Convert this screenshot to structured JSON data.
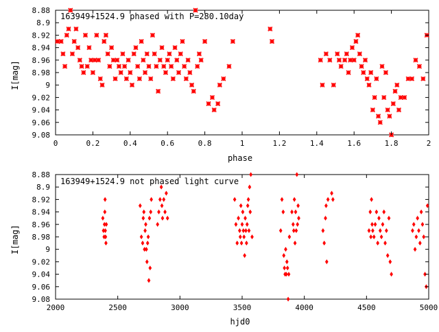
{
  "chart_data": [
    {
      "type": "scatter",
      "title": "163949+1524.9 phased with P=280.10day",
      "xlabel": "phase",
      "ylabel": "I[mag]",
      "xlim": [
        0,
        2
      ],
      "ylim": [
        8.88,
        9.08
      ],
      "y_inverted": true,
      "xticks": [
        0,
        0.2,
        0.4,
        0.6,
        0.8,
        1,
        1.2,
        1.4,
        1.6,
        1.8,
        2
      ],
      "xtick_labels": [
        "0",
        "0.2",
        "0.4",
        "0.6",
        "0.8",
        "1",
        "1.2",
        "1.4",
        "1.6",
        "1.8",
        "2"
      ],
      "yticks": [
        8.88,
        8.9,
        8.92,
        8.94,
        8.96,
        8.98,
        9,
        9.02,
        9.04,
        9.06,
        9.08
      ],
      "ytick_labels": [
        "8.88",
        "8.9",
        "8.92",
        "8.94",
        "8.96",
        "8.98",
        "9",
        "9.02",
        "9.04",
        "9.06",
        "9.08"
      ],
      "grid": false,
      "marker_color": "#ff0000",
      "points": [
        [
          0.01,
          8.93
        ],
        [
          0.03,
          8.93
        ],
        [
          0.04,
          8.95
        ],
        [
          0.05,
          8.97
        ],
        [
          0.06,
          8.92
        ],
        [
          0.07,
          8.91
        ],
        [
          0.08,
          8.88
        ],
        [
          0.09,
          8.95
        ],
        [
          0.1,
          8.93
        ],
        [
          0.11,
          8.91
        ],
        [
          0.12,
          8.94
        ],
        [
          0.13,
          8.96
        ],
        [
          0.14,
          8.97
        ],
        [
          0.15,
          8.98
        ],
        [
          0.16,
          8.92
        ],
        [
          0.17,
          8.97
        ],
        [
          0.18,
          8.94
        ],
        [
          0.19,
          8.96
        ],
        [
          0.2,
          8.98
        ],
        [
          0.21,
          8.96
        ],
        [
          0.22,
          8.92
        ],
        [
          0.23,
          8.96
        ],
        [
          0.24,
          8.99
        ],
        [
          0.25,
          9
        ],
        [
          0.26,
          8.93
        ],
        [
          0.27,
          8.92
        ],
        [
          0.28,
          8.95
        ],
        [
          0.29,
          8.97
        ],
        [
          0.3,
          8.94
        ],
        [
          0.31,
          8.96
        ],
        [
          0.32,
          8.99
        ],
        [
          0.33,
          8.96
        ],
        [
          0.34,
          8.97
        ],
        [
          0.35,
          8.98
        ],
        [
          0.36,
          8.95
        ],
        [
          0.37,
          8.97
        ],
        [
          0.38,
          8.99
        ],
        [
          0.39,
          8.96
        ],
        [
          0.4,
          8.98
        ],
        [
          0.41,
          9
        ],
        [
          0.42,
          8.95
        ],
        [
          0.43,
          8.94
        ],
        [
          0.44,
          8.97
        ],
        [
          0.45,
          8.99
        ],
        [
          0.46,
          8.93
        ],
        [
          0.47,
          8.96
        ],
        [
          0.48,
          8.98
        ],
        [
          0.49,
          8.95
        ],
        [
          0.5,
          8.97
        ],
        [
          0.51,
          8.99
        ],
        [
          0.52,
          8.92
        ],
        [
          0.53,
          8.95
        ],
        [
          0.54,
          8.97
        ],
        [
          0.55,
          9.01
        ],
        [
          0.56,
          8.96
        ],
        [
          0.57,
          8.94
        ],
        [
          0.58,
          8.97
        ],
        [
          0.59,
          8.98
        ],
        [
          0.6,
          8.96
        ],
        [
          0.61,
          8.95
        ],
        [
          0.62,
          8.97
        ],
        [
          0.63,
          8.99
        ],
        [
          0.64,
          8.94
        ],
        [
          0.65,
          8.96
        ],
        [
          0.66,
          8.98
        ],
        [
          0.67,
          8.95
        ],
        [
          0.68,
          8.93
        ],
        [
          0.69,
          8.97
        ],
        [
          0.7,
          8.99
        ],
        [
          0.71,
          8.96
        ],
        [
          0.72,
          8.98
        ],
        [
          0.73,
          9
        ],
        [
          0.74,
          9.01
        ],
        [
          0.75,
          8.88
        ],
        [
          0.76,
          8.97
        ],
        [
          0.77,
          8.95
        ],
        [
          0.78,
          8.96
        ],
        [
          0.8,
          8.93
        ],
        [
          0.82,
          9.03
        ],
        [
          0.84,
          9.02
        ],
        [
          0.85,
          9.04
        ],
        [
          0.87,
          9.03
        ],
        [
          0.88,
          9
        ],
        [
          0.9,
          8.99
        ],
        [
          0.93,
          8.97
        ],
        [
          0.95,
          8.93
        ],
        [
          1.15,
          8.91
        ],
        [
          1.16,
          8.93
        ],
        [
          1.42,
          8.96
        ],
        [
          1.43,
          9
        ],
        [
          1.45,
          8.95
        ],
        [
          1.47,
          8.96
        ],
        [
          1.49,
          9
        ],
        [
          1.51,
          8.95
        ],
        [
          1.52,
          8.96
        ],
        [
          1.53,
          8.97
        ],
        [
          1.55,
          8.96
        ],
        [
          1.56,
          8.95
        ],
        [
          1.57,
          8.98
        ],
        [
          1.58,
          8.96
        ],
        [
          1.59,
          8.94
        ],
        [
          1.6,
          8.96
        ],
        [
          1.61,
          8.93
        ],
        [
          1.62,
          8.92
        ],
        [
          1.63,
          8.95
        ],
        [
          1.64,
          8.97
        ],
        [
          1.65,
          8.98
        ],
        [
          1.66,
          8.96
        ],
        [
          1.67,
          8.99
        ],
        [
          1.68,
          9
        ],
        [
          1.69,
          8.98
        ],
        [
          1.7,
          9.04
        ],
        [
          1.71,
          9.02
        ],
        [
          1.72,
          8.99
        ],
        [
          1.73,
          9.05
        ],
        [
          1.74,
          9.06
        ],
        [
          1.75,
          8.97
        ],
        [
          1.76,
          9.02
        ],
        [
          1.77,
          8.98
        ],
        [
          1.78,
          9.04
        ],
        [
          1.79,
          9.05
        ],
        [
          1.8,
          9.08
        ],
        [
          1.81,
          9.03
        ],
        [
          1.82,
          9.01
        ],
        [
          1.83,
          9
        ],
        [
          1.84,
          9.04
        ],
        [
          1.85,
          9.02
        ],
        [
          1.87,
          9.02
        ],
        [
          1.89,
          8.99
        ],
        [
          1.91,
          8.99
        ],
        [
          1.93,
          8.96
        ],
        [
          1.95,
          8.97
        ],
        [
          1.97,
          8.99
        ],
        [
          1.99,
          8.92
        ]
      ]
    },
    {
      "type": "scatter",
      "title": "163949+1524.9 not phased light curve",
      "xlabel": "hjd0",
      "ylabel": "I[mag]",
      "xlim": [
        2000,
        5000
      ],
      "ylim": [
        8.88,
        9.08
      ],
      "y_inverted": true,
      "xticks": [
        2000,
        2500,
        3000,
        3500,
        4000,
        4500,
        5000
      ],
      "xtick_labels": [
        "2000",
        "2500",
        "3000",
        "3500",
        "4000",
        "4500",
        "5000"
      ],
      "yticks": [
        8.88,
        8.9,
        8.92,
        8.94,
        8.96,
        8.98,
        9,
        9.02,
        9.04,
        9.06,
        9.08
      ],
      "ytick_labels": [
        "8.88",
        "8.9",
        "8.92",
        "8.94",
        "8.96",
        "8.98",
        "9",
        "9.02",
        "9.04",
        "9.06",
        "9.08"
      ],
      "grid": false,
      "marker_color": "#ff0000",
      "points": [
        [
          2380,
          8.95
        ],
        [
          2385,
          8.97
        ],
        [
          2390,
          8.98
        ],
        [
          2393,
          8.96
        ],
        [
          2396,
          8.94
        ],
        [
          2398,
          8.92
        ],
        [
          2400,
          8.97
        ],
        [
          2402,
          8.98
        ],
        [
          2405,
          8.99
        ],
        [
          2408,
          8.96
        ],
        [
          2680,
          8.93
        ],
        [
          2690,
          8.98
        ],
        [
          2700,
          8.99
        ],
        [
          2705,
          8.95
        ],
        [
          2710,
          8.94
        ],
        [
          2715,
          9
        ],
        [
          2720,
          8.97
        ],
        [
          2725,
          8.96
        ],
        [
          2730,
          9
        ],
        [
          2735,
          9.02
        ],
        [
          2740,
          8.99
        ],
        [
          2745,
          8.98
        ],
        [
          2750,
          9.05
        ],
        [
          2755,
          8.95
        ],
        [
          2760,
          9.03
        ],
        [
          2765,
          8.94
        ],
        [
          2770,
          8.92
        ],
        [
          2820,
          8.96
        ],
        [
          2830,
          8.94
        ],
        [
          2840,
          8.92
        ],
        [
          2850,
          8.9
        ],
        [
          2855,
          8.93
        ],
        [
          2860,
          8.95
        ],
        [
          2870,
          8.92
        ],
        [
          2880,
          8.94
        ],
        [
          2890,
          8.91
        ],
        [
          2900,
          8.95
        ],
        [
          3440,
          8.92
        ],
        [
          3450,
          8.96
        ],
        [
          3460,
          8.99
        ],
        [
          3470,
          8.95
        ],
        [
          3480,
          8.97
        ],
        [
          3485,
          8.98
        ],
        [
          3490,
          8.93
        ],
        [
          3495,
          8.99
        ],
        [
          3500,
          8.96
        ],
        [
          3505,
          8.94
        ],
        [
          3510,
          8.97
        ],
        [
          3515,
          8.98
        ],
        [
          3520,
          9.01
        ],
        [
          3525,
          8.95
        ],
        [
          3530,
          8.97
        ],
        [
          3535,
          8.99
        ],
        [
          3540,
          8.96
        ],
        [
          3545,
          8.93
        ],
        [
          3550,
          8.92
        ],
        [
          3555,
          8.97
        ],
        [
          3560,
          8.9
        ],
        [
          3565,
          8.94
        ],
        [
          3570,
          8.88
        ],
        [
          3580,
          8.98
        ],
        [
          3810,
          8.97
        ],
        [
          3820,
          8.92
        ],
        [
          3830,
          8.94
        ],
        [
          3835,
          9.01
        ],
        [
          3840,
          9.03
        ],
        [
          3845,
          9.04
        ],
        [
          3850,
          9
        ],
        [
          3855,
          9.04
        ],
        [
          3860,
          9.02
        ],
        [
          3865,
          9.03
        ],
        [
          3870,
          9.08
        ],
        [
          3875,
          9.04
        ],
        [
          3880,
          8.98
        ],
        [
          3900,
          8.94
        ],
        [
          3910,
          8.96
        ],
        [
          3915,
          8.97
        ],
        [
          3920,
          8.92
        ],
        [
          3925,
          8.99
        ],
        [
          3930,
          8.94
        ],
        [
          3935,
          8.97
        ],
        [
          3940,
          8.88
        ],
        [
          3945,
          8.96
        ],
        [
          3950,
          8.93
        ],
        [
          3955,
          8.95
        ],
        [
          4150,
          8.97
        ],
        [
          4160,
          8.99
        ],
        [
          4170,
          8.95
        ],
        [
          4175,
          8.93
        ],
        [
          4180,
          9.02
        ],
        [
          4190,
          8.92
        ],
        [
          4220,
          8.91
        ],
        [
          4230,
          8.92
        ],
        [
          4520,
          8.97
        ],
        [
          4530,
          8.94
        ],
        [
          4535,
          8.98
        ],
        [
          4540,
          8.92
        ],
        [
          4545,
          8.96
        ],
        [
          4550,
          8.97
        ],
        [
          4560,
          8.98
        ],
        [
          4570,
          8.96
        ],
        [
          4580,
          8.94
        ],
        [
          4590,
          8.99
        ],
        [
          4600,
          8.95
        ],
        [
          4610,
          8.97
        ],
        [
          4620,
          8.98
        ],
        [
          4630,
          8.96
        ],
        [
          4640,
          8.94
        ],
        [
          4650,
          8.99
        ],
        [
          4660,
          8.97
        ],
        [
          4670,
          9.01
        ],
        [
          4680,
          8.95
        ],
        [
          4690,
          9.02
        ],
        [
          4700,
          9.04
        ],
        [
          4870,
          8.97
        ],
        [
          4880,
          8.96
        ],
        [
          4890,
          9
        ],
        [
          4900,
          8.98
        ],
        [
          4910,
          8.95
        ],
        [
          4920,
          8.97
        ],
        [
          4930,
          8.99
        ],
        [
          4940,
          8.94
        ],
        [
          4950,
          8.96
        ],
        [
          4960,
          8.98
        ],
        [
          4970,
          9.04
        ],
        [
          4980,
          9.06
        ],
        [
          4990,
          8.93
        ]
      ]
    }
  ]
}
